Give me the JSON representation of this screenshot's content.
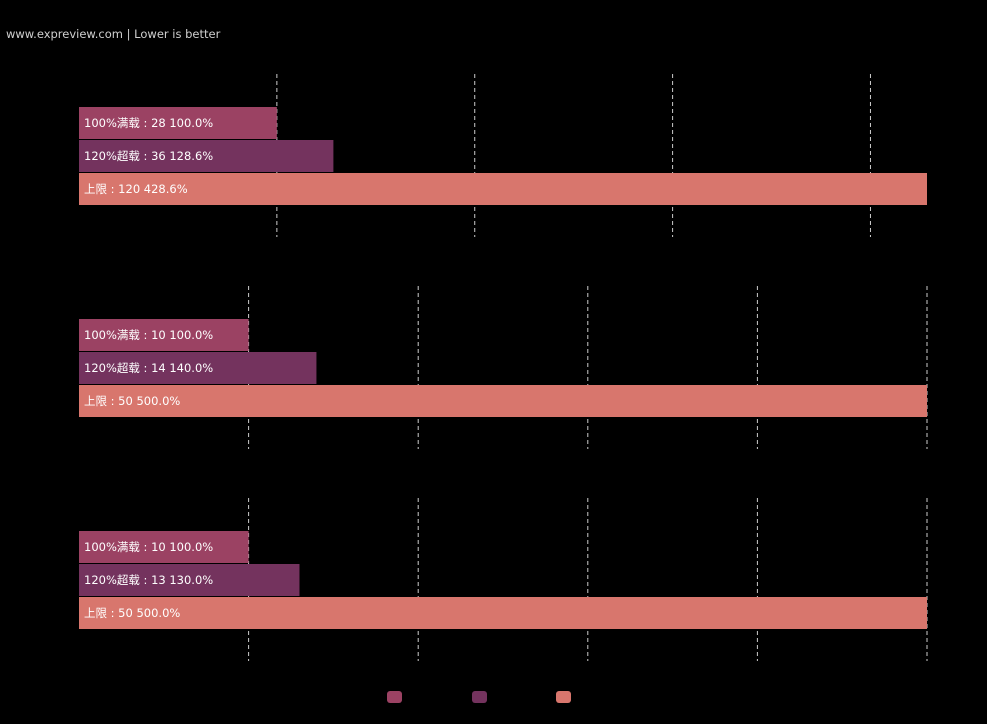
{
  "header": {
    "subtitle": "www.expreview.com | Lower is better"
  },
  "chart_data": {
    "type": "bar",
    "orientation": "horizontal",
    "title": "",
    "subtitle": "www.expreview.com | Lower is better",
    "grid": true,
    "legend": "bottom",
    "series": [
      {
        "name": "",
        "color": "#9b4263"
      },
      {
        "name": "",
        "color": "#74335e"
      },
      {
        "name": "",
        "color": "#d8766d"
      }
    ],
    "groups": [
      {
        "xlim": [
          0,
          120
        ],
        "bars": [
          {
            "label": "100%满载 : 28  100.0%",
            "value": 28
          },
          {
            "label": "120%超载 : 36  128.6%",
            "value": 36
          },
          {
            "label": "上限 : 120  428.6%",
            "value": 120
          }
        ]
      },
      {
        "xlim": [
          0,
          50
        ],
        "bars": [
          {
            "label": "100%满载 : 10  100.0%",
            "value": 10
          },
          {
            "label": "120%超载 : 14  140.0%",
            "value": 14
          },
          {
            "label": "上限 : 50  500.0%",
            "value": 50
          }
        ]
      },
      {
        "xlim": [
          0,
          50
        ],
        "bars": [
          {
            "label": "100%满载 : 10  100.0%",
            "value": 10
          },
          {
            "label": "120%超载 : 13  130.0%",
            "value": 13
          },
          {
            "label": "上限 : 50  500.0%",
            "value": 50
          }
        ]
      }
    ]
  }
}
